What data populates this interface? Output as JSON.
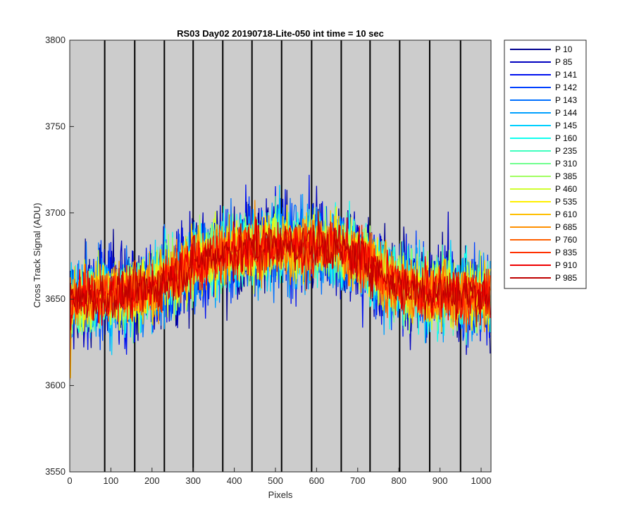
{
  "chart_data": {
    "type": "line",
    "title": "RS03 Day02 20190718-Lite-050 int time = 10 sec",
    "xlabel": "Pixels",
    "ylabel": "Cross Track Signal (ADU)",
    "xlim": [
      0,
      1024
    ],
    "ylim": [
      3550,
      3800
    ],
    "x_ticks": [
      0,
      100,
      200,
      300,
      400,
      500,
      600,
      700,
      800,
      900,
      1000
    ],
    "y_ticks": [
      3550,
      3600,
      3650,
      3700,
      3750,
      3800
    ],
    "x_tick_labels": [
      "0",
      "100",
      "200",
      "300",
      "400",
      "500",
      "600",
      "700",
      "800",
      "900",
      "1000"
    ],
    "y_tick_labels": [
      "3550",
      "3600",
      "3650",
      "3700",
      "3750",
      "3800"
    ],
    "background_color": "#cccccc",
    "grid": false,
    "vertical_markers": [
      85,
      158,
      230,
      300,
      372,
      443,
      515,
      588,
      660,
      730,
      802,
      875,
      950
    ],
    "legend_position": "outside-right",
    "n_points": 1024,
    "profile": {
      "x": [
        0,
        60,
        130,
        200,
        280,
        350,
        420,
        500,
        580,
        650,
        720,
        780,
        850,
        950,
        1024
      ],
      "mean": [
        3648,
        3652,
        3653,
        3656,
        3668,
        3676,
        3679,
        3681,
        3681,
        3680,
        3672,
        3660,
        3655,
        3653,
        3652
      ],
      "spread": 20
    },
    "series": [
      {
        "name": "P 10",
        "color": "#00008f"
      },
      {
        "name": "P 85",
        "color": "#0000bf"
      },
      {
        "name": "P 141",
        "color": "#0010ef"
      },
      {
        "name": "P 142",
        "color": "#0040ff"
      },
      {
        "name": "P 143",
        "color": "#0070ff"
      },
      {
        "name": "P 144",
        "color": "#00a0ff"
      },
      {
        "name": "P 145",
        "color": "#00d0ff"
      },
      {
        "name": "P 160",
        "color": "#10ffef"
      },
      {
        "name": "P 235",
        "color": "#40ffbf"
      },
      {
        "name": "P 310",
        "color": "#70ff8f"
      },
      {
        "name": "P 385",
        "color": "#a0ff60"
      },
      {
        "name": "P 460",
        "color": "#d0ff30"
      },
      {
        "name": "P 535",
        "color": "#ffef00"
      },
      {
        "name": "P 610",
        "color": "#ffbf00"
      },
      {
        "name": "P 685",
        "color": "#ff9000"
      },
      {
        "name": "P 760",
        "color": "#ff6000"
      },
      {
        "name": "P 835",
        "color": "#ff3000"
      },
      {
        "name": "P 910",
        "color": "#ef0000"
      },
      {
        "name": "P 985",
        "color": "#bf0000"
      }
    ]
  }
}
